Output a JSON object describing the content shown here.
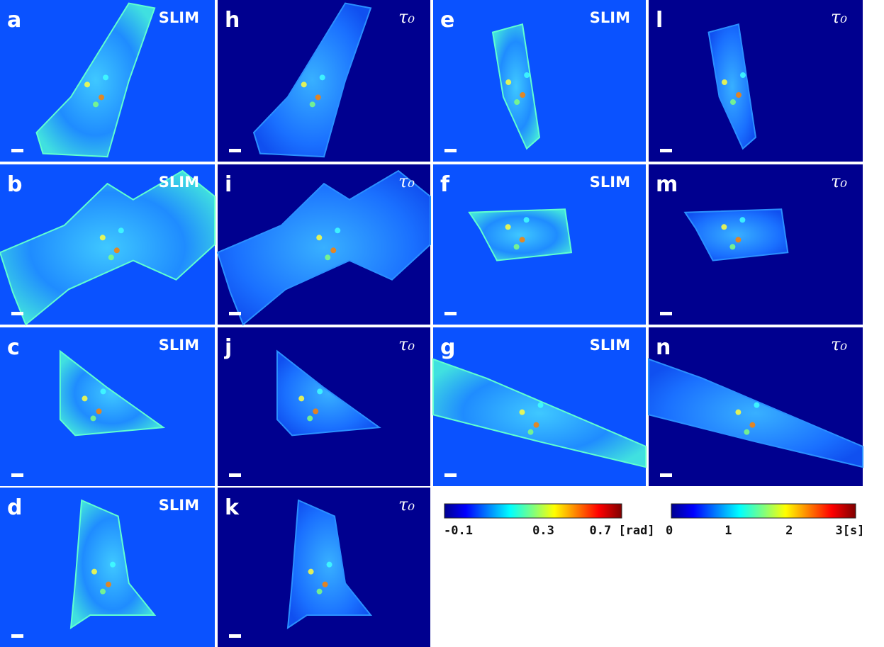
{
  "panels": [
    {
      "letter": "a",
      "label": "SLIM"
    },
    {
      "letter": "b",
      "label": "SLIM"
    },
    {
      "letter": "c",
      "label": "SLIM"
    },
    {
      "letter": "d",
      "label": "SLIM"
    },
    {
      "letter": "h",
      "label": "τ₀"
    },
    {
      "letter": "i",
      "label": "τ₀"
    },
    {
      "letter": "j",
      "label": "τ₀"
    },
    {
      "letter": "k",
      "label": "τ₀"
    },
    {
      "letter": "e",
      "label": "SLIM"
    },
    {
      "letter": "f",
      "label": "SLIM"
    },
    {
      "letter": "g",
      "label": "SLIM"
    },
    {
      "letter": "l",
      "label": "τ₀"
    },
    {
      "letter": "m",
      "label": "τ₀"
    },
    {
      "letter": "n",
      "label": "τ₀"
    }
  ],
  "colorbars": [
    {
      "labels": [
        "-0.1",
        "0.3",
        "0.7 [rad]"
      ]
    },
    {
      "labels": [
        "0",
        "1",
        "2",
        "3[s]"
      ]
    }
  ]
}
